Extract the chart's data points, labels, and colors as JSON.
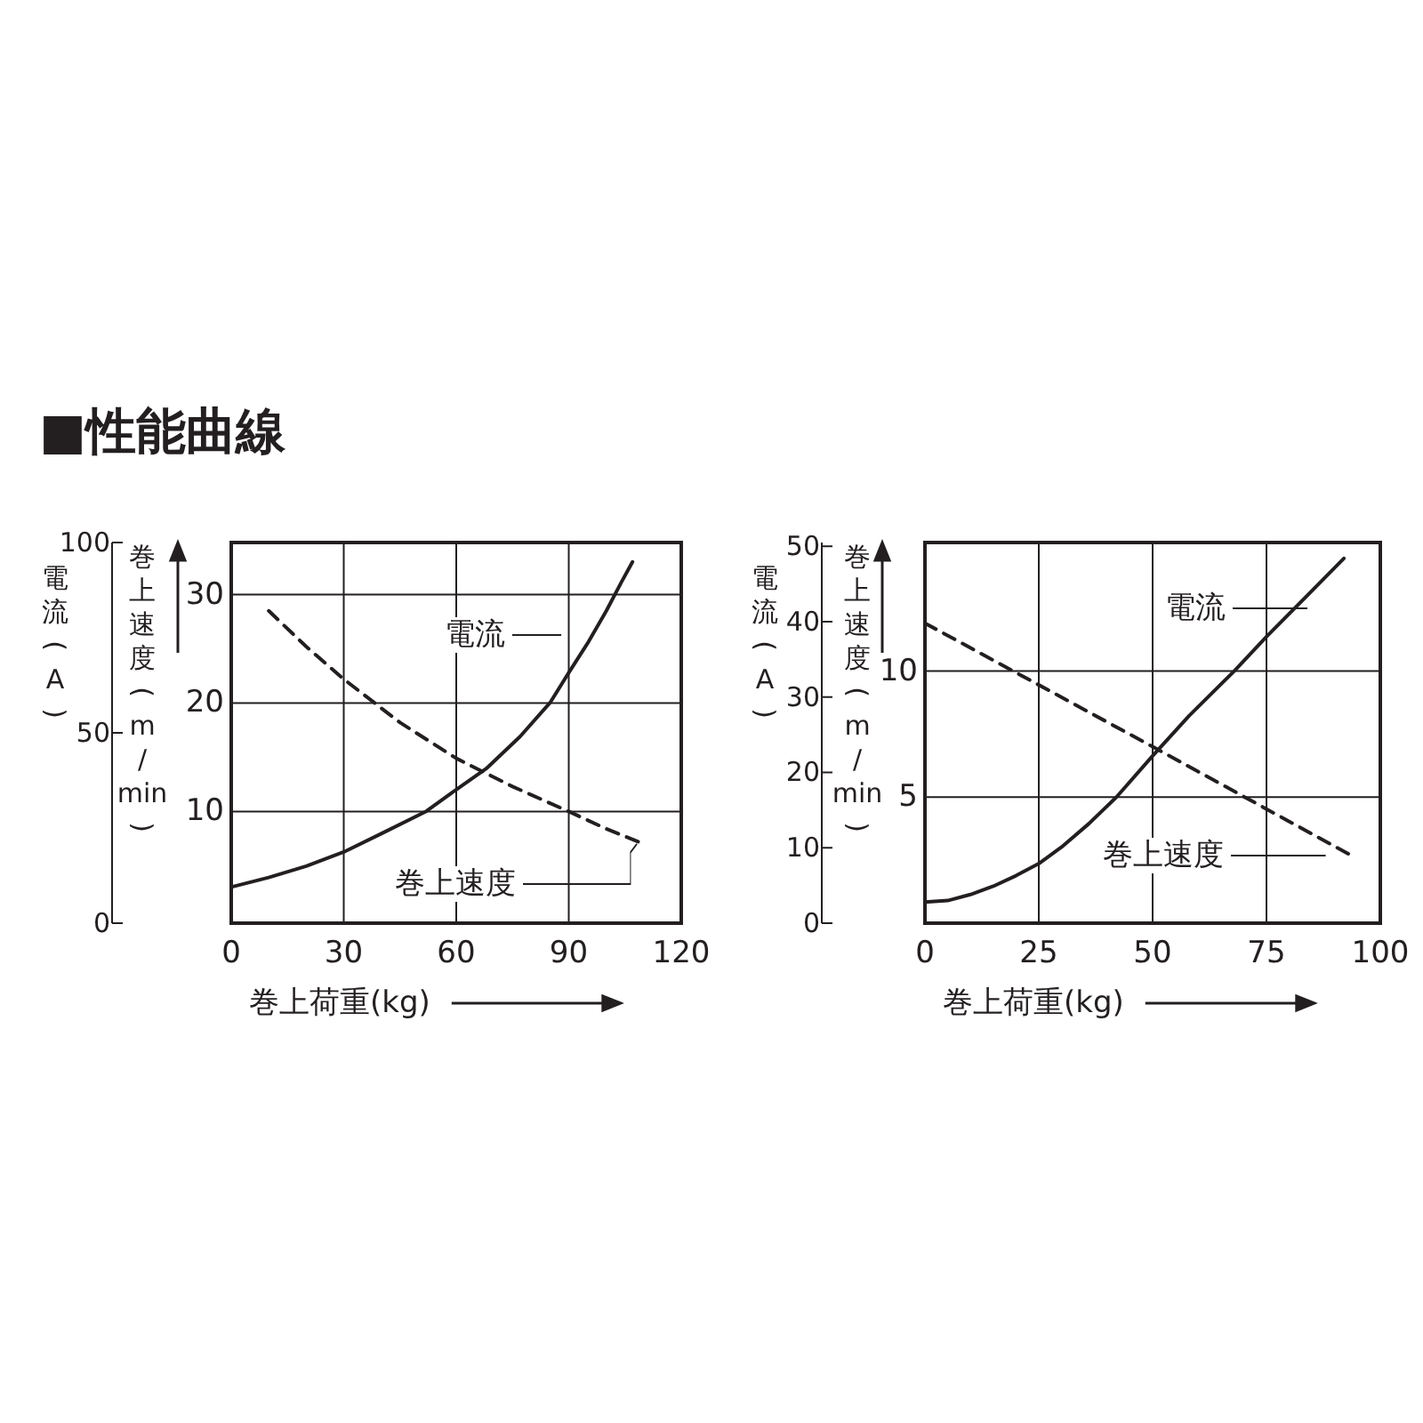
{
  "chart_data": [
    {
      "type": "line",
      "title": "■性能曲線",
      "xlabel": "巻上荷重(kg)",
      "ylabel": "巻上速度(m/min)",
      "y2label": "電流(A)",
      "xlim": [
        0,
        120
      ],
      "xticks": [
        0,
        30,
        60,
        90,
        120
      ],
      "ylim": [
        -0.3,
        34.8
      ],
      "yticks": [
        10,
        20,
        30
      ],
      "y2lim": [
        0,
        100
      ],
      "y2ticks": [
        0,
        50,
        100
      ],
      "grid": true,
      "legend": "right",
      "series": [
        {
          "name": "電流",
          "color": "#231f20",
          "axis": "y2",
          "line_style": "solid",
          "x": [
            0,
            10,
            20,
            30,
            40,
            52,
            60,
            68,
            77,
            85,
            90,
            95,
            100,
            104,
            107
          ],
          "values": [
            9.5,
            12.0,
            15.0,
            18.7,
            23.5,
            29.4,
            35.1,
            40.6,
            49.0,
            57.9,
            65.8,
            73.5,
            82.0,
            89.5,
            94.9
          ]
        },
        {
          "name": "巻上速度",
          "color": "#231f20",
          "line_style": "dashed",
          "x": [
            10,
            20,
            30,
            45,
            60,
            75,
            90,
            100,
            110
          ],
          "values": [
            28.5,
            25.2,
            22.2,
            18.2,
            14.9,
            12.3,
            10.0,
            8.4,
            7.0
          ]
        }
      ]
    },
    {
      "type": "line",
      "xlabel": "巻上荷重(kg)",
      "ylabel": "巻上速度(m/min)",
      "y2label": "電流(A)",
      "xlim": [
        0,
        100
      ],
      "xticks": [
        0,
        25,
        50,
        75,
        100
      ],
      "ylim": [
        0,
        15.1
      ],
      "yticks": [
        5,
        10
      ],
      "y2lim": [
        0,
        50.5
      ],
      "y2ticks": [
        0,
        10,
        20,
        30,
        40,
        50
      ],
      "grid": true,
      "legend": "right",
      "series": [
        {
          "name": "電流",
          "color": "#231f20",
          "axis": "y2",
          "line_style": "solid",
          "x": [
            0,
            5,
            10,
            15,
            20,
            25,
            30,
            36,
            42,
            50,
            58,
            68,
            75,
            84,
            92
          ],
          "values": [
            2.8,
            3.0,
            3.8,
            4.9,
            6.3,
            7.9,
            10.1,
            13.2,
            16.7,
            22.2,
            27.5,
            33.5,
            38.0,
            43.5,
            48.4
          ]
        },
        {
          "name": "巻上速度",
          "color": "#231f20",
          "line_style": "dashed",
          "x": [
            0,
            50,
            94
          ],
          "values": [
            11.9,
            7.0,
            2.65
          ]
        }
      ]
    }
  ]
}
